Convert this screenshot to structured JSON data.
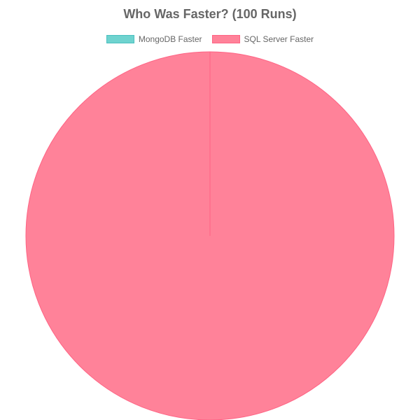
{
  "chart_data": {
    "type": "pie",
    "title": "Who Was Faster? (100 Runs)",
    "labels": [
      "MongoDB Faster",
      "SQL Server Faster"
    ],
    "values": [
      0,
      100
    ],
    "colors": [
      "#6fd3cf",
      "#ff8299"
    ],
    "border_colors": [
      "#4bc0c0",
      "#ff6384"
    ],
    "legend_position": "top"
  }
}
